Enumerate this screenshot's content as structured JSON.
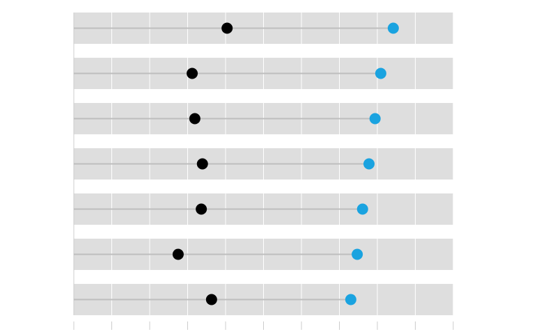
{
  "chart_data": {
    "type": "dumbbell",
    "categories": [
      null,
      null,
      null,
      null,
      null,
      null,
      null
    ],
    "series": [
      {
        "color": "#000000",
        "values": [
          40.4,
          31.2,
          31.9,
          33.9,
          33.6,
          27.5,
          36.3
        ]
      },
      {
        "color": "#1aa3e0",
        "values": [
          84.2,
          80.9,
          79.4,
          77.8,
          76.1,
          74.7,
          73.0
        ]
      }
    ],
    "xlim": [
      0,
      100
    ],
    "xticks": [
      0,
      10,
      20,
      30,
      40,
      50,
      60,
      70,
      80,
      90,
      100
    ],
    "grid": true
  }
}
